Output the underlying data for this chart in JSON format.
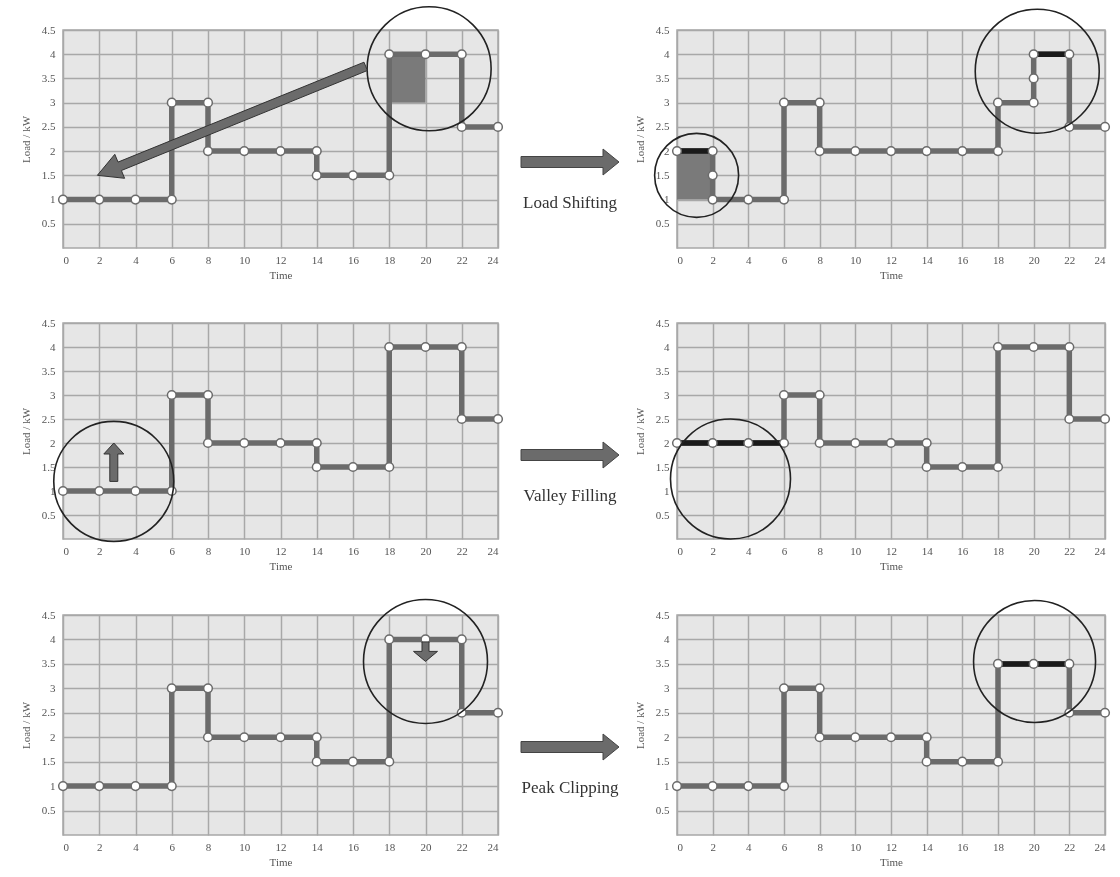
{
  "chart_data": [
    {
      "type": "line",
      "xlabel": "Time",
      "ylabel": "Load / kW",
      "xlim": [
        0,
        24
      ],
      "ylim": [
        0,
        4.5
      ],
      "xticks": [
        0,
        2,
        4,
        6,
        8,
        10,
        12,
        14,
        16,
        18,
        20,
        22,
        24
      ],
      "yticks": [
        0.5,
        1,
        1.5,
        2,
        2.5,
        3,
        3.5,
        4,
        4.5
      ],
      "grid": true,
      "marker": "circle",
      "line_style": "solid",
      "series": [
        {
          "color": "#6b6b6b",
          "x": [
            0,
            2,
            4,
            6,
            6,
            8,
            8,
            10,
            12,
            14,
            14,
            16,
            18,
            18,
            20,
            22,
            22,
            24
          ],
          "values": [
            1,
            1,
            1,
            1,
            3,
            3,
            2,
            2,
            2,
            2,
            1.5,
            1.5,
            1.5,
            4,
            4,
            4,
            2.5,
            2.5
          ]
        }
      ]
    },
    {
      "type": "line",
      "xlabel": "Time",
      "ylabel": "Load / kW",
      "xlim": [
        0,
        24
      ],
      "ylim": [
        0,
        4.5
      ],
      "xticks": [
        0,
        2,
        4,
        6,
        8,
        10,
        12,
        14,
        16,
        18,
        20,
        22,
        24
      ],
      "yticks": [
        0.5,
        1,
        1.5,
        2,
        2.5,
        3,
        3.5,
        4,
        4.5
      ],
      "grid": true,
      "marker": "circle",
      "line_style": "solid",
      "annotations": [
        "Load Shifting"
      ],
      "series": [
        {
          "color": "#6b6b6b",
          "x": [
            0,
            2,
            2,
            2,
            4,
            6,
            6,
            8,
            8,
            10,
            12,
            14,
            16,
            18,
            18,
            20,
            20,
            20,
            22,
            22,
            24
          ],
          "values": [
            2,
            2,
            1.5,
            1,
            1,
            1,
            3,
            3,
            2,
            2,
            2,
            2,
            2,
            2,
            3,
            3,
            3.5,
            4,
            4,
            2.5,
            2.5
          ]
        },
        {
          "color": "#1a1a1a",
          "marker": "none",
          "x": [
            0,
            2
          ],
          "values": [
            2,
            2
          ]
        },
        {
          "color": "#1a1a1a",
          "marker": "none",
          "x": [
            20,
            22
          ],
          "values": [
            4,
            4
          ]
        }
      ]
    },
    {
      "type": "line",
      "xlabel": "Time",
      "ylabel": "Load / kW",
      "xlim": [
        0,
        24
      ],
      "ylim": [
        0,
        4.5
      ],
      "xticks": [
        0,
        2,
        4,
        6,
        8,
        10,
        12,
        14,
        16,
        18,
        20,
        22,
        24
      ],
      "yticks": [
        0.5,
        1,
        1.5,
        2,
        2.5,
        3,
        3.5,
        4,
        4.5
      ],
      "grid": true,
      "marker": "circle",
      "line_style": "solid",
      "series": [
        {
          "color": "#6b6b6b",
          "x": [
            0,
            2,
            4,
            6,
            6,
            8,
            8,
            10,
            12,
            14,
            14,
            16,
            18,
            18,
            20,
            22,
            22,
            24
          ],
          "values": [
            1,
            1,
            1,
            1,
            3,
            3,
            2,
            2,
            2,
            2,
            1.5,
            1.5,
            1.5,
            4,
            4,
            4,
            2.5,
            2.5
          ]
        }
      ]
    },
    {
      "type": "line",
      "xlabel": "Time",
      "ylabel": "Load / kW",
      "xlim": [
        0,
        24
      ],
      "ylim": [
        0,
        4.5
      ],
      "xticks": [
        0,
        2,
        4,
        6,
        8,
        10,
        12,
        14,
        16,
        18,
        20,
        22,
        24
      ],
      "yticks": [
        0.5,
        1,
        1.5,
        2,
        2.5,
        3,
        3.5,
        4,
        4.5
      ],
      "grid": true,
      "marker": "circle",
      "line_style": "solid",
      "annotations": [
        "Valley Filling"
      ],
      "series": [
        {
          "color": "#6b6b6b",
          "x": [
            0,
            2,
            4,
            6,
            6,
            8,
            8,
            10,
            12,
            14,
            14,
            16,
            18,
            18,
            20,
            22,
            22,
            24
          ],
          "values": [
            2,
            2,
            2,
            2,
            3,
            3,
            2,
            2,
            2,
            2,
            1.5,
            1.5,
            1.5,
            4,
            4,
            4,
            2.5,
            2.5
          ]
        },
        {
          "color": "#1a1a1a",
          "marker": "none",
          "x": [
            0,
            2,
            4,
            6
          ],
          "values": [
            2,
            2,
            2,
            2
          ]
        }
      ]
    },
    {
      "type": "line",
      "xlabel": "Time",
      "ylabel": "Load / kW",
      "xlim": [
        0,
        24
      ],
      "ylim": [
        0,
        4.5
      ],
      "xticks": [
        0,
        2,
        4,
        6,
        8,
        10,
        12,
        14,
        16,
        18,
        20,
        22,
        24
      ],
      "yticks": [
        0.5,
        1,
        1.5,
        2,
        2.5,
        3,
        3.5,
        4,
        4.5
      ],
      "grid": true,
      "marker": "circle",
      "line_style": "solid",
      "series": [
        {
          "color": "#6b6b6b",
          "x": [
            0,
            2,
            4,
            6,
            6,
            8,
            8,
            10,
            12,
            14,
            14,
            16,
            18,
            18,
            20,
            22,
            22,
            24
          ],
          "values": [
            1,
            1,
            1,
            1,
            3,
            3,
            2,
            2,
            2,
            2,
            1.5,
            1.5,
            1.5,
            4,
            4,
            4,
            2.5,
            2.5
          ]
        }
      ]
    },
    {
      "type": "line",
      "xlabel": "Time",
      "ylabel": "Load / kW",
      "xlim": [
        0,
        24
      ],
      "ylim": [
        0,
        4.5
      ],
      "xticks": [
        0,
        2,
        4,
        6,
        8,
        10,
        12,
        14,
        16,
        18,
        20,
        22,
        24
      ],
      "yticks": [
        0.5,
        1,
        1.5,
        2,
        2.5,
        3,
        3.5,
        4,
        4.5
      ],
      "grid": true,
      "marker": "circle",
      "line_style": "solid",
      "annotations": [
        "Peak Clipping"
      ],
      "series": [
        {
          "color": "#6b6b6b",
          "x": [
            0,
            2,
            4,
            6,
            6,
            8,
            8,
            10,
            12,
            14,
            14,
            16,
            18,
            18,
            20,
            22,
            22,
            24
          ],
          "values": [
            1,
            1,
            1,
            1,
            3,
            3,
            2,
            2,
            2,
            2,
            1.5,
            1.5,
            1.5,
            3.5,
            3.5,
            3.5,
            2.5,
            2.5
          ]
        },
        {
          "color": "#1a1a1a",
          "marker": "none",
          "x": [
            18,
            20,
            22
          ],
          "values": [
            3.5,
            3.5,
            3.5
          ]
        }
      ]
    }
  ]
}
